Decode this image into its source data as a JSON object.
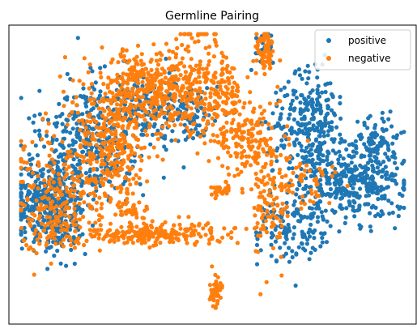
{
  "chart_data": {
    "type": "scatter",
    "title": "Germline Pairing",
    "xlabel": "",
    "ylabel": "",
    "axes_ticks": false,
    "legend_position": "top-right",
    "series": [
      {
        "name": "positive",
        "color": "#1f77b4",
        "clusters": [
          {
            "cx": 0.1,
            "cy": 0.6,
            "sx": 0.045,
            "sy": 0.085,
            "n": 420
          },
          {
            "cx": 0.2,
            "cy": 0.39,
            "sx": 0.06,
            "sy": 0.09,
            "n": 320
          },
          {
            "cx": 0.33,
            "cy": 0.27,
            "sx": 0.06,
            "sy": 0.06,
            "n": 160
          },
          {
            "cx": 0.44,
            "cy": 0.3,
            "sx": 0.05,
            "sy": 0.05,
            "n": 90
          },
          {
            "cx": 0.63,
            "cy": 0.06,
            "sx": 0.01,
            "sy": 0.03,
            "n": 30
          },
          {
            "cx": 0.74,
            "cy": 0.34,
            "sx": 0.045,
            "sy": 0.09,
            "n": 280
          },
          {
            "cx": 0.85,
            "cy": 0.53,
            "sx": 0.065,
            "sy": 0.06,
            "n": 360
          },
          {
            "cx": 0.9,
            "cy": 0.4,
            "sx": 0.025,
            "sy": 0.045,
            "n": 90
          },
          {
            "cx": 0.7,
            "cy": 0.67,
            "sx": 0.045,
            "sy": 0.07,
            "n": 150
          }
        ]
      },
      {
        "name": "negative",
        "color": "#ff7f0e",
        "clusters": [
          {
            "cx": 0.13,
            "cy": 0.56,
            "sx": 0.06,
            "sy": 0.1,
            "n": 220
          },
          {
            "cx": 0.26,
            "cy": 0.38,
            "sx": 0.05,
            "sy": 0.12,
            "n": 340
          },
          {
            "cx": 0.35,
            "cy": 0.21,
            "sx": 0.07,
            "sy": 0.06,
            "n": 300
          },
          {
            "cx": 0.45,
            "cy": 0.19,
            "sx": 0.035,
            "sy": 0.09,
            "n": 160
          },
          {
            "cx": 0.53,
            "cy": 0.24,
            "sx": 0.02,
            "sy": 0.08,
            "n": 110
          },
          {
            "cx": 0.63,
            "cy": 0.08,
            "sx": 0.012,
            "sy": 0.035,
            "n": 70
          },
          {
            "cx": 0.58,
            "cy": 0.38,
            "sx": 0.03,
            "sy": 0.06,
            "n": 110
          },
          {
            "cx": 0.64,
            "cy": 0.54,
            "sx": 0.025,
            "sy": 0.12,
            "n": 140
          },
          {
            "cx": 0.35,
            "cy": 0.7,
            "sx": 0.1,
            "sy": 0.018,
            "n": 230
          },
          {
            "cx": 0.51,
            "cy": 0.89,
            "sx": 0.008,
            "sy": 0.03,
            "n": 45
          },
          {
            "cx": 0.52,
            "cy": 0.55,
            "sx": 0.01,
            "sy": 0.015,
            "n": 25
          },
          {
            "cx": 0.3,
            "cy": 0.62,
            "sx": 0.02,
            "sy": 0.015,
            "n": 30
          },
          {
            "cx": 0.74,
            "cy": 0.52,
            "sx": 0.03,
            "sy": 0.05,
            "n": 45
          },
          {
            "cx": 0.08,
            "cy": 0.68,
            "sx": 0.04,
            "sy": 0.04,
            "n": 35
          }
        ]
      }
    ]
  }
}
